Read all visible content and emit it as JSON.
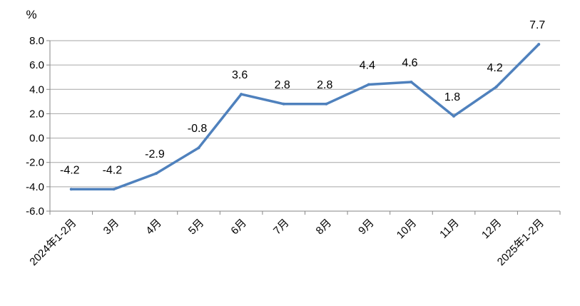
{
  "chart_data": {
    "type": "line",
    "title": "",
    "xlabel": "",
    "ylabel": "%",
    "categories": [
      "2024年1-2月",
      "3月",
      "4月",
      "5月",
      "6月",
      "7月",
      "8月",
      "9月",
      "10月",
      "11月",
      "12月",
      "2025年1-2月"
    ],
    "series": [
      {
        "values": [
          -4.2,
          -4.2,
          -2.9,
          -0.8,
          3.6,
          2.8,
          2.8,
          4.4,
          4.6,
          1.8,
          4.2,
          7.7
        ]
      }
    ],
    "data_labels": [
      "-4.2",
      "-4.2",
      "-2.9",
      "-0.8",
      "3.6",
      "2.8",
      "2.8",
      "4.4",
      "4.6",
      "1.8",
      "4.2",
      "7.7"
    ],
    "y_ticks": [
      "8.0",
      "6.0",
      "4.0",
      "2.0",
      "0.0",
      "-2.0",
      "-4.0",
      "-6.0"
    ],
    "ylim": [
      -6,
      8
    ],
    "grid": true,
    "legend": "none",
    "line_color": "#4f81bd"
  }
}
